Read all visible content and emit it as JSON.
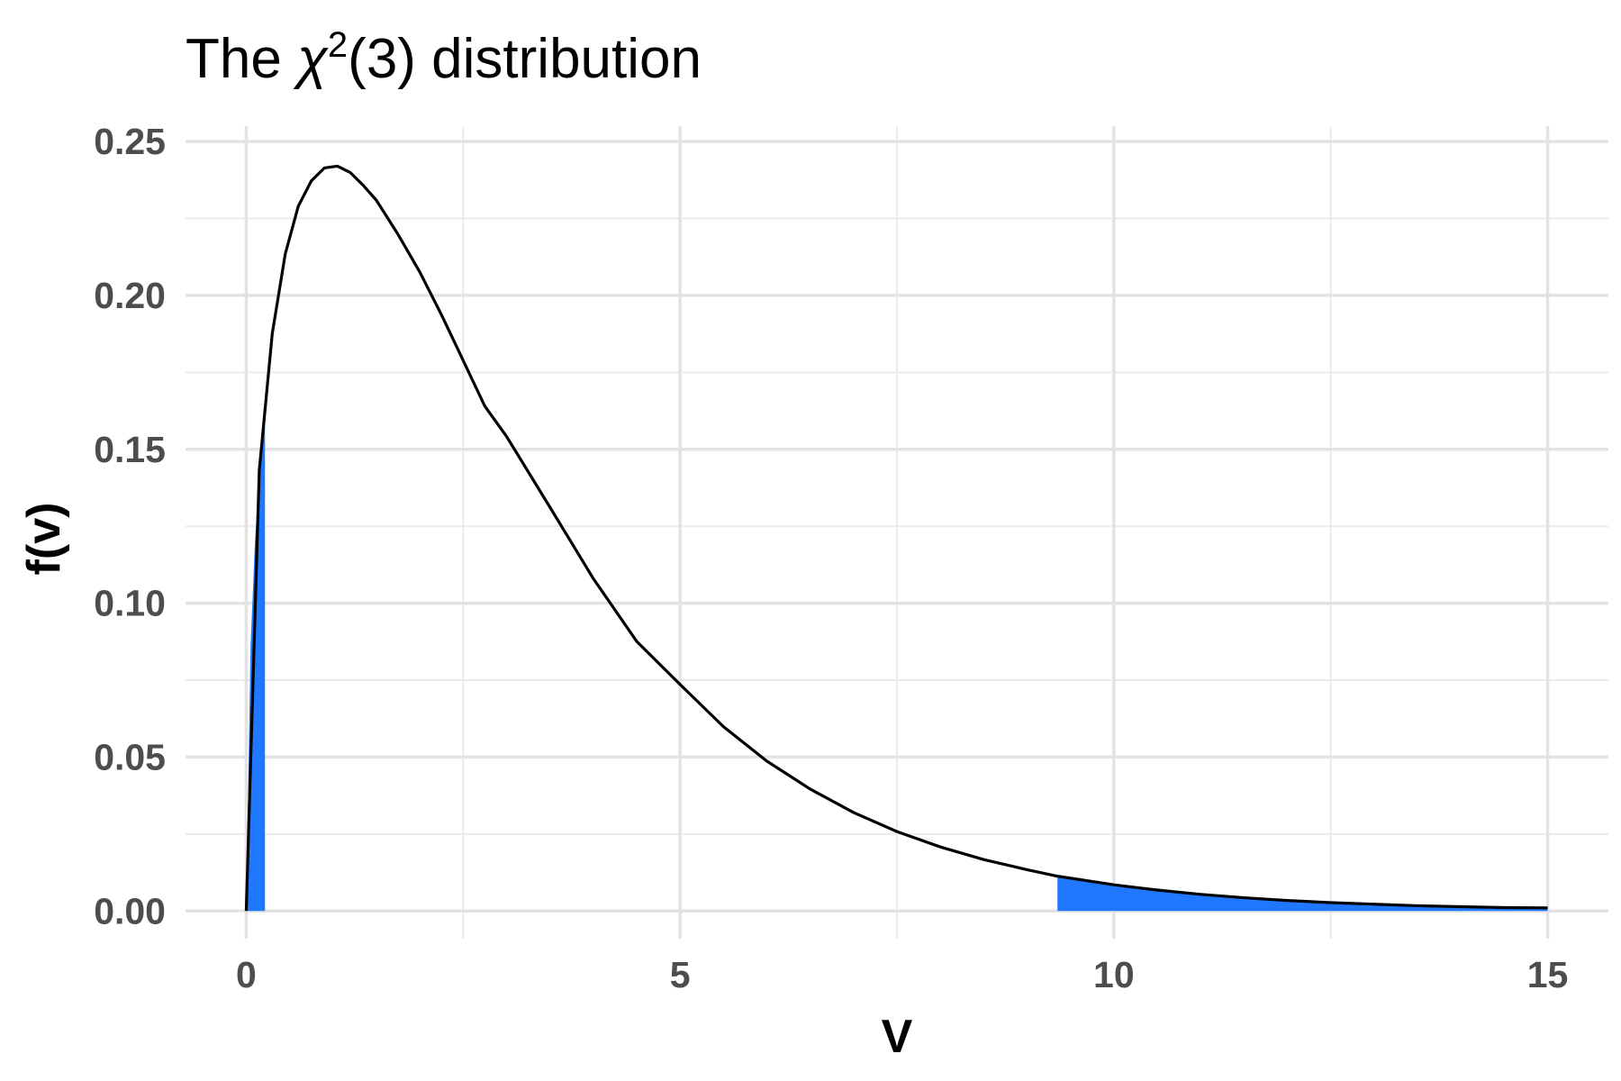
{
  "chart_data": {
    "type": "area",
    "title": {
      "prefix": "The ",
      "symbol": "χ",
      "superscript": "2",
      "suffix": "(3) distribution"
    },
    "xlabel": "V",
    "ylabel": "f(v)",
    "xlim": [
      -0.7,
      15.7
    ],
    "ylim": [
      -0.009,
      0.255
    ],
    "x_ticks": [
      0,
      5,
      10,
      15
    ],
    "x_tick_labels": [
      "0",
      "5",
      "10",
      "15"
    ],
    "x_minor_ticks": [
      2.5,
      7.5,
      12.5
    ],
    "y_ticks": [
      0,
      0.05,
      0.1,
      0.15,
      0.2,
      0.25
    ],
    "y_tick_labels": [
      "0.00",
      "0.05",
      "0.10",
      "0.15",
      "0.20",
      "0.25"
    ],
    "y_minor_ticks": [
      0.025,
      0.075,
      0.125,
      0.175,
      0.225
    ],
    "grid": true,
    "series": [
      {
        "type": "line",
        "color": "#000000",
        "x": [
          0,
          0.15,
          0.3,
          0.45,
          0.6,
          0.75,
          0.9,
          1.05,
          1.2,
          1.35,
          1.5,
          1.75,
          2,
          2.25,
          2.5,
          2.75,
          3,
          3.5,
          4,
          4.5,
          5,
          5.5,
          6,
          6.5,
          7,
          7.5,
          8,
          8.5,
          9,
          9.35,
          10,
          10.5,
          11,
          11.5,
          12,
          12.5,
          13,
          13.5,
          14,
          14.5,
          15
        ],
        "y": [
          0,
          0.1431,
          0.1876,
          0.2135,
          0.229,
          0.2372,
          0.2414,
          0.242,
          0.2399,
          0.2357,
          0.2309,
          0.2198,
          0.2076,
          0.1937,
          0.1789,
          0.164,
          0.1542,
          0.1312,
          0.108,
          0.0876,
          0.0736,
          0.0599,
          0.0487,
          0.0396,
          0.032,
          0.0258,
          0.0208,
          0.0167,
          0.0134,
          0.0113,
          0.0085,
          0.0068,
          0.0054,
          0.0043,
          0.0034,
          0.0027,
          0.0022,
          0.0017,
          0.0014,
          0.0011,
          0.001
        ]
      },
      {
        "type": "area",
        "color": "#1f78ff",
        "x": [
          0,
          0.05,
          0.1,
          0.15,
          0.216
        ],
        "y": [
          0,
          0.0863,
          0.1196,
          0.1431,
          0.1585
        ]
      },
      {
        "type": "area",
        "color": "#1f78ff",
        "x": [
          9.35,
          10,
          10.5,
          11,
          11.5,
          12,
          12.5,
          13,
          13.5,
          14,
          14.5,
          15
        ],
        "y": [
          0.0113,
          0.0085,
          0.0068,
          0.0054,
          0.0043,
          0.0034,
          0.0027,
          0.0022,
          0.0017,
          0.0014,
          0.0011,
          0.001
        ]
      }
    ]
  }
}
